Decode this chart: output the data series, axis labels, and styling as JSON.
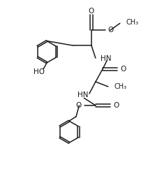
{
  "bg_color": "#ffffff",
  "line_color": "#1a1a1a",
  "line_width": 1.1,
  "font_size": 7.0,
  "fig_width": 2.22,
  "fig_height": 2.62,
  "dpi": 100,
  "xlim": [
    0,
    11
  ],
  "ylim": [
    0,
    13
  ]
}
